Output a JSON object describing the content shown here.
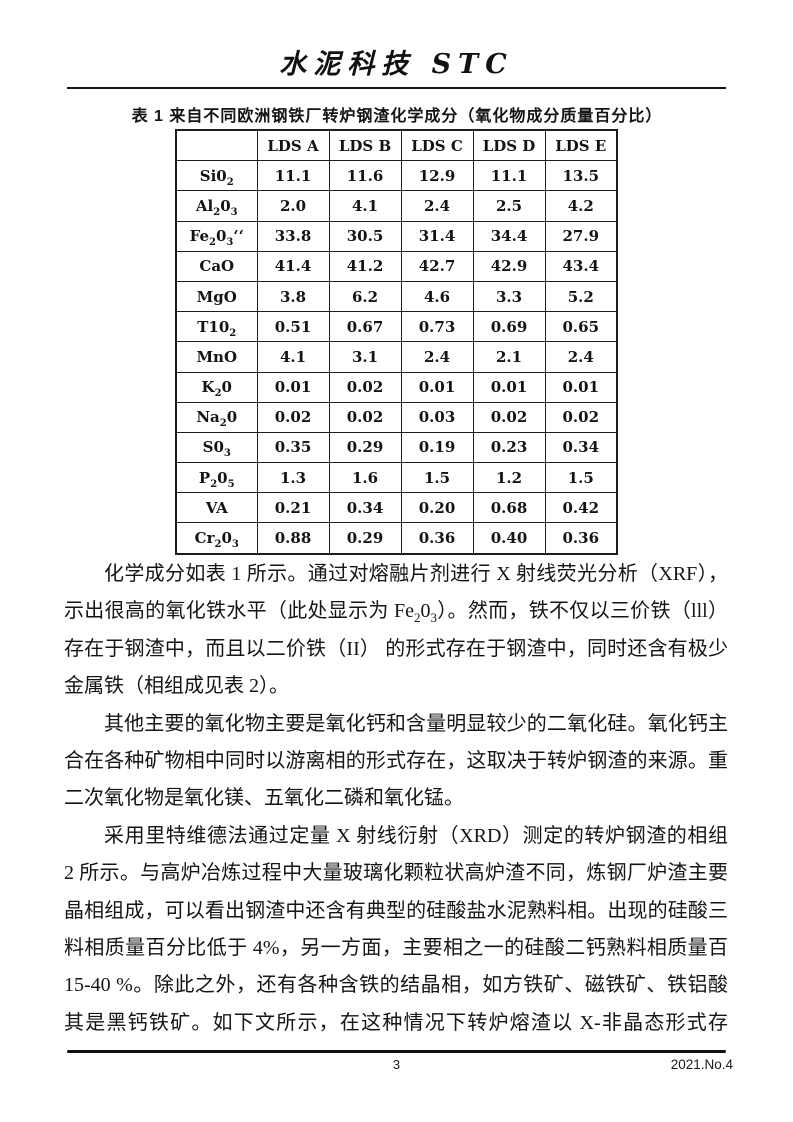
{
  "header": {
    "journal_title": "水泥科技 STC"
  },
  "table": {
    "caption": "表 1   来自不同欧洲钢铁厂转炉钢渣化学成分（氧化物成分质量百分比）",
    "columns": [
      "",
      "LDS A",
      "LDS B",
      "LDS C",
      "LDS D",
      "LDS E"
    ],
    "rows": [
      {
        "label": "Si0{2}",
        "values": [
          "11.1",
          "11.6",
          "12.9",
          "11.1",
          "13.5"
        ]
      },
      {
        "label": "Al{2}0{3}",
        "values": [
          "2.0",
          "4.1",
          "2.4",
          "2.5",
          "4.2"
        ]
      },
      {
        "label": "Fe{2}0{3}‘‘",
        "values": [
          "33.8",
          "30.5",
          "31.4",
          "34.4",
          "27.9"
        ]
      },
      {
        "label": "CaO",
        "values": [
          "41.4",
          "41.2",
          "42.7",
          "42.9",
          "43.4"
        ]
      },
      {
        "label": "MgO",
        "values": [
          "3.8",
          "6.2",
          "4.6",
          "3.3",
          "5.2"
        ]
      },
      {
        "label": "T10{2}",
        "values": [
          "0.51",
          "0.67",
          "0.73",
          "0.69",
          "0.65"
        ]
      },
      {
        "label": "MnO",
        "values": [
          "4.1",
          "3.1",
          "2.4",
          "2.1",
          "2.4"
        ]
      },
      {
        "label": "K{2}0",
        "values": [
          "0.01",
          "0.02",
          "0.01",
          "0.01",
          "0.01"
        ]
      },
      {
        "label": "Na{2}0",
        "values": [
          "0.02",
          "0.02",
          "0.03",
          "0.02",
          "0.02"
        ]
      },
      {
        "label": "S0{3}",
        "values": [
          "0.35",
          "0.29",
          "0.19",
          "0.23",
          "0.34"
        ]
      },
      {
        "label": "P{2}0{5}",
        "values": [
          "1.3",
          "1.6",
          "1.5",
          "1.2",
          "1.5"
        ]
      },
      {
        "label": "VA",
        "values": [
          "0.21",
          "0.34",
          "0.20",
          "0.68",
          "0.42"
        ]
      },
      {
        "label": "Cr{2}0{3}",
        "values": [
          "0.88",
          "0.29",
          "0.36",
          "0.40",
          "0.36"
        ]
      }
    ]
  },
  "body": {
    "paragraphs": [
      {
        "lines": [
          {
            "text": "化学成分如表 1 所示。通过对熔融片剂进行 X 射线荧光分析（XRF），分析显",
            "indent": true,
            "short": false
          },
          {
            "text": "示出很高的氧化铁水平（此处显示为 Fe{2}0{3}）。然而，铁不仅以三价铁（lll）的形式",
            "indent": false,
            "short": false
          },
          {
            "text": "存在于钢渣中，而且以二价铁（II）  的形式存在于钢渣中，同时还含有极少量的",
            "indent": false,
            "short": false
          },
          {
            "text": "金属铁（相组成见表 2）。",
            "indent": false,
            "short": true
          }
        ]
      },
      {
        "lines": [
          {
            "text": "其他主要的氧化物主要是氧化钙和含量明显较少的二氧化硅。氧化钙主要结",
            "indent": true,
            "short": false
          },
          {
            "text": "合在各种矿物相中同时以游离相的形式存在，这取决于转炉钢渣的来源。重要的",
            "indent": false,
            "short": false
          },
          {
            "text": "二次氧化物是氧化镁、五氧化二磷和氧化锰。",
            "indent": false,
            "short": true
          }
        ]
      },
      {
        "lines": [
          {
            "text": "采用里特维德法通过定量 X 射线衍射（XRD）测定的转炉钢渣的相组成如表",
            "indent": true,
            "short": false
          },
          {
            "text": "2 所示。与高炉冶炼过程中大量玻璃化颗粒状高炉渣不同，炼钢厂炉渣主要由结",
            "indent": false,
            "short": false
          },
          {
            "text": "晶相组成，可以看出钢渣中还含有典型的硅酸盐水泥熟料相。出现的硅酸三钙熟",
            "indent": false,
            "short": false
          },
          {
            "text": "料相质量百分比低于 4%，另一方面，主要相之一的硅酸二钙熟料相质量百分比为",
            "indent": false,
            "short": false
          },
          {
            "text": "15-40 %。除此之外，还有各种含铁的结晶相，如方铁矿、磁铁矿、铁铝酸钙，尤",
            "indent": false,
            "short": false
          },
          {
            "text": "其是黑钙铁矿。如下文所示，在这种情况下转炉熔渣以 X-非晶态形式存在，不是",
            "indent": false,
            "short": false
          }
        ]
      }
    ]
  },
  "footer": {
    "page_number": "3",
    "issue": "2021.No.4"
  }
}
